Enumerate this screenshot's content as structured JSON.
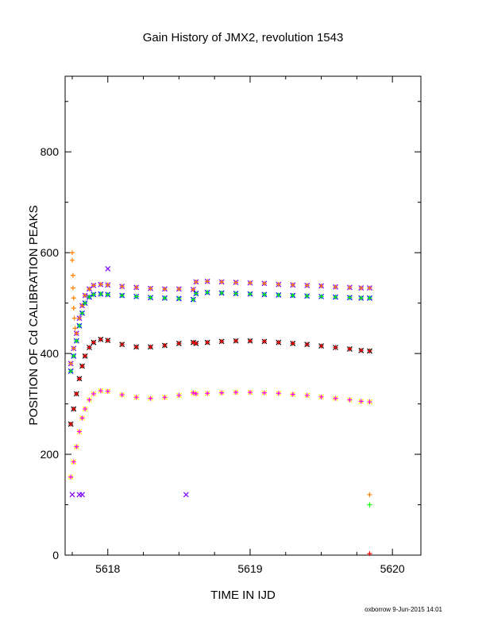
{
  "chart_data": {
    "type": "scatter",
    "title": "Gain History of JMX2, revolution 1543",
    "xlabel": "TIME IN IJD",
    "ylabel": "POSITION OF Cd CALIBRATION PEAKS",
    "xlim": [
      5617.7,
      5620.2
    ],
    "ylim": [
      0,
      950
    ],
    "xticks": [
      5618,
      5619,
      5620
    ],
    "yticks": [
      0,
      200,
      400,
      600,
      800
    ],
    "grid": false,
    "legend": "none",
    "footer": "oxborrow  9-Jun-2015 14:01",
    "series": [
      {
        "color": "#7F00FF",
        "marker": "x",
        "x": [
          5617.74,
          5617.76,
          5617.78,
          5617.8,
          5617.82,
          5617.84,
          5617.87,
          5617.9,
          5617.95,
          5618.0,
          5618.1,
          5618.2,
          5618.3,
          5618.4,
          5618.5,
          5618.6,
          5618.62,
          5618.7,
          5618.8,
          5618.9,
          5619.0,
          5619.1,
          5619.2,
          5619.3,
          5619.4,
          5619.5,
          5619.6,
          5619.7,
          5619.78,
          5619.84
        ],
        "y": [
          380,
          410,
          440,
          470,
          495,
          515,
          528,
          535,
          537,
          536,
          533,
          531,
          529,
          528,
          528,
          527,
          542,
          543,
          542,
          541,
          540,
          539,
          537,
          536,
          535,
          534,
          532,
          531,
          530,
          530
        ]
      },
      {
        "color": "#0000FF",
        "marker": "x",
        "x": [
          5617.74,
          5617.76,
          5617.78,
          5617.8,
          5617.82,
          5617.84,
          5617.87,
          5617.9,
          5617.95,
          5618.0,
          5618.1,
          5618.2,
          5618.3,
          5618.4,
          5618.5,
          5618.6,
          5618.62,
          5618.7,
          5618.8,
          5618.9,
          5619.0,
          5619.1,
          5619.2,
          5619.3,
          5619.4,
          5619.5,
          5619.6,
          5619.7,
          5619.78,
          5619.84
        ],
        "y": [
          365,
          395,
          425,
          455,
          480,
          500,
          512,
          517,
          518,
          517,
          515,
          513,
          511,
          510,
          509,
          507,
          519,
          521,
          520,
          519,
          518,
          517,
          516,
          515,
          514,
          513,
          512,
          511,
          510,
          510
        ]
      },
      {
        "color": "#FF8000",
        "marker": "+",
        "x": [
          5617.74,
          5617.76,
          5617.78,
          5617.8,
          5617.82,
          5617.84,
          5617.87,
          5617.9,
          5617.95,
          5618.0,
          5618.1,
          5618.2,
          5618.3,
          5618.4,
          5618.5,
          5618.6,
          5618.62,
          5618.7,
          5618.8,
          5618.9,
          5619.0,
          5619.1,
          5619.2,
          5619.3,
          5619.4,
          5619.5,
          5619.6,
          5619.7,
          5619.78,
          5619.84
        ],
        "y": [
          380,
          410,
          440,
          470,
          495,
          515,
          528,
          535,
          537,
          536,
          533,
          531,
          529,
          528,
          528,
          527,
          542,
          543,
          542,
          541,
          540,
          539,
          537,
          536,
          535,
          534,
          532,
          531,
          530,
          530
        ]
      },
      {
        "color": "#00FF00",
        "marker": "+",
        "x": [
          5617.74,
          5617.76,
          5617.78,
          5617.8,
          5617.82,
          5617.84,
          5617.87,
          5617.9,
          5617.95,
          5618.0,
          5618.1,
          5618.2,
          5618.3,
          5618.4,
          5618.5,
          5618.6,
          5618.62,
          5618.7,
          5618.8,
          5618.9,
          5619.0,
          5619.1,
          5619.2,
          5619.3,
          5619.4,
          5619.5,
          5619.6,
          5619.7,
          5619.78,
          5619.84
        ],
        "y": [
          365,
          395,
          425,
          455,
          480,
          500,
          512,
          517,
          518,
          517,
          515,
          513,
          511,
          510,
          509,
          507,
          519,
          521,
          520,
          519,
          518,
          517,
          516,
          515,
          514,
          513,
          512,
          511,
          510,
          510
        ]
      },
      {
        "color": "#000000",
        "marker": "x",
        "x": [
          5617.74,
          5617.76,
          5617.78,
          5617.8,
          5617.82,
          5617.84,
          5617.87,
          5617.9,
          5617.95,
          5618.0,
          5618.1,
          5618.2,
          5618.3,
          5618.4,
          5618.5,
          5618.6,
          5618.62,
          5618.7,
          5618.8,
          5618.9,
          5619.0,
          5619.1,
          5619.2,
          5619.3,
          5619.4,
          5619.5,
          5619.6,
          5619.7,
          5619.78,
          5619.84
        ],
        "y": [
          260,
          290,
          320,
          350,
          375,
          395,
          412,
          422,
          428,
          426,
          418,
          413,
          413,
          416,
          420,
          422,
          420,
          422,
          424,
          425,
          425,
          424,
          422,
          420,
          418,
          415,
          412,
          409,
          406,
          405
        ]
      },
      {
        "color": "#FF0000",
        "marker": "+",
        "x": [
          5617.74,
          5617.76,
          5617.78,
          5617.8,
          5617.82,
          5617.84,
          5617.87,
          5617.9,
          5617.95,
          5618.0,
          5618.1,
          5618.2,
          5618.3,
          5618.4,
          5618.5,
          5618.6,
          5618.62,
          5618.7,
          5618.8,
          5618.9,
          5619.0,
          5619.1,
          5619.2,
          5619.3,
          5619.4,
          5619.5,
          5619.6,
          5619.7,
          5619.78,
          5619.84
        ],
        "y": [
          260,
          290,
          320,
          350,
          375,
          395,
          412,
          422,
          428,
          426,
          418,
          413,
          413,
          416,
          420,
          422,
          420,
          422,
          424,
          425,
          425,
          424,
          422,
          420,
          418,
          415,
          412,
          409,
          406,
          405
        ]
      },
      {
        "color": "#FFFF00",
        "marker": "x",
        "x": [
          5617.74,
          5617.76,
          5617.78,
          5617.8,
          5617.82,
          5617.84,
          5617.87,
          5617.9,
          5617.95,
          5618.0,
          5618.1,
          5618.2,
          5618.3,
          5618.4,
          5618.5,
          5618.6,
          5618.62,
          5618.7,
          5618.8,
          5618.9,
          5619.0,
          5619.1,
          5619.2,
          5619.3,
          5619.4,
          5619.5,
          5619.6,
          5619.7,
          5619.78,
          5619.84
        ],
        "y": [
          155,
          185,
          215,
          245,
          272,
          290,
          308,
          320,
          326,
          325,
          318,
          313,
          311,
          313,
          317,
          322,
          320,
          321,
          322,
          323,
          323,
          322,
          321,
          319,
          317,
          314,
          311,
          308,
          305,
          304
        ]
      },
      {
        "color": "#FF00FF",
        "marker": "+",
        "x": [
          5617.74,
          5617.76,
          5617.78,
          5617.8,
          5617.82,
          5617.84,
          5617.87,
          5617.9,
          5617.95,
          5618.0,
          5618.1,
          5618.2,
          5618.3,
          5618.4,
          5618.5,
          5618.6,
          5618.62,
          5618.7,
          5618.8,
          5618.9,
          5619.0,
          5619.1,
          5619.2,
          5619.3,
          5619.4,
          5619.5,
          5619.6,
          5619.7,
          5619.78,
          5619.84
        ],
        "y": [
          155,
          185,
          215,
          245,
          272,
          290,
          308,
          320,
          326,
          325,
          318,
          313,
          311,
          313,
          317,
          322,
          320,
          321,
          322,
          323,
          323,
          322,
          321,
          319,
          317,
          314,
          311,
          308,
          305,
          304
        ]
      }
    ],
    "outliers": [
      {
        "x": 5617.75,
        "y": 600,
        "color": "#FF8000",
        "marker": "+"
      },
      {
        "x": 5617.75,
        "y": 585,
        "color": "#FF8000",
        "marker": "+"
      },
      {
        "x": 5617.755,
        "y": 555,
        "color": "#FF8000",
        "marker": "+"
      },
      {
        "x": 5617.755,
        "y": 530,
        "color": "#FF8000",
        "marker": "+"
      },
      {
        "x": 5617.76,
        "y": 510,
        "color": "#FF8000",
        "marker": "+"
      },
      {
        "x": 5617.76,
        "y": 490,
        "color": "#FF8000",
        "marker": "+"
      },
      {
        "x": 5617.765,
        "y": 470,
        "color": "#FF8000",
        "marker": "+"
      },
      {
        "x": 5617.77,
        "y": 450,
        "color": "#FF8000",
        "marker": "+"
      },
      {
        "x": 5617.75,
        "y": 120,
        "color": "#7F00FF",
        "marker": "x"
      },
      {
        "x": 5617.8,
        "y": 120,
        "color": "#7F00FF",
        "marker": "x"
      },
      {
        "x": 5617.82,
        "y": 120,
        "color": "#7F00FF",
        "marker": "x"
      },
      {
        "x": 5618.55,
        "y": 120,
        "color": "#7F00FF",
        "marker": "x"
      },
      {
        "x": 5618.0,
        "y": 568,
        "color": "#7F00FF",
        "marker": "x"
      },
      {
        "x": 5619.84,
        "y": 120,
        "color": "#FF8000",
        "marker": "+"
      },
      {
        "x": 5619.84,
        "y": 100,
        "color": "#00FF00",
        "marker": "+"
      },
      {
        "x": 5619.84,
        "y": 3,
        "color": "#FF0000",
        "marker": "+"
      }
    ]
  }
}
